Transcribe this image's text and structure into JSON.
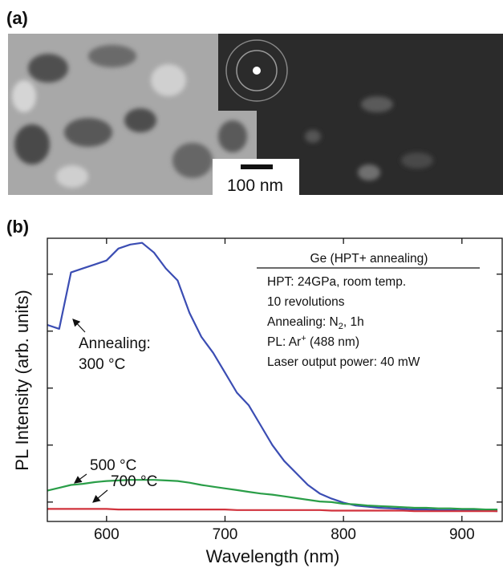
{
  "panel_a": {
    "label": "(a)",
    "scale_bar": "100 nm"
  },
  "chart_data": {
    "type": "line",
    "panel_label": "(b)",
    "xlabel": "Wavelength (nm)",
    "ylabel": "PL Intensity (arb. units)",
    "x": [
      550,
      560,
      570,
      580,
      590,
      600,
      610,
      620,
      630,
      640,
      650,
      660,
      670,
      680,
      690,
      700,
      710,
      720,
      730,
      740,
      750,
      760,
      770,
      780,
      790,
      800,
      810,
      820,
      830,
      840,
      850,
      860,
      870,
      880,
      890,
      900,
      910,
      920,
      930
    ],
    "xlim": [
      550,
      934
    ],
    "xticks": [
      600,
      700,
      800,
      900
    ],
    "ylim": [
      0.66,
      5.63
    ],
    "yticks": [
      1,
      2,
      3,
      4,
      5
    ],
    "annotations": [
      "Annealing:"
    ],
    "series": [
      {
        "name": "300 °C",
        "color": "#3b4db3",
        "values": [
          4.11,
          4.04,
          5.03,
          5.1,
          5.17,
          5.24,
          5.45,
          5.52,
          5.55,
          5.38,
          5.1,
          4.89,
          4.32,
          3.9,
          3.62,
          3.27,
          2.92,
          2.7,
          2.35,
          2.0,
          1.72,
          1.51,
          1.3,
          1.15,
          1.06,
          0.99,
          0.94,
          0.92,
          0.9,
          0.89,
          0.88,
          0.87,
          0.87,
          0.86,
          0.86,
          0.85,
          0.85,
          0.85,
          0.84
        ]
      },
      {
        "name": "500 °C",
        "color": "#2a9e48",
        "values": [
          1.2,
          1.25,
          1.3,
          1.32,
          1.35,
          1.37,
          1.38,
          1.39,
          1.39,
          1.39,
          1.38,
          1.37,
          1.34,
          1.3,
          1.27,
          1.24,
          1.21,
          1.18,
          1.15,
          1.13,
          1.1,
          1.07,
          1.04,
          1.01,
          1.0,
          0.97,
          0.96,
          0.94,
          0.93,
          0.92,
          0.91,
          0.9,
          0.9,
          0.89,
          0.89,
          0.88,
          0.88,
          0.87,
          0.87
        ]
      },
      {
        "name": "700 °C",
        "color": "#d1323c",
        "values": [
          0.88,
          0.88,
          0.88,
          0.88,
          0.88,
          0.88,
          0.87,
          0.87,
          0.87,
          0.87,
          0.87,
          0.87,
          0.87,
          0.87,
          0.87,
          0.87,
          0.86,
          0.86,
          0.86,
          0.86,
          0.86,
          0.86,
          0.86,
          0.86,
          0.85,
          0.85,
          0.85,
          0.85,
          0.85,
          0.85,
          0.85,
          0.84,
          0.84,
          0.84,
          0.84,
          0.84,
          0.84,
          0.84,
          0.84
        ]
      }
    ],
    "legend_box": {
      "title": "Ge (HPT+ annealing)",
      "lines": [
        "HPT: 24GPa, room temp.",
        "10 revolutions",
        [
          "Annealing: N",
          "2",
          ", 1h"
        ],
        [
          "PL: Ar",
          "+",
          " (488 nm)"
        ],
        "Laser output power: 40 mW"
      ]
    }
  }
}
